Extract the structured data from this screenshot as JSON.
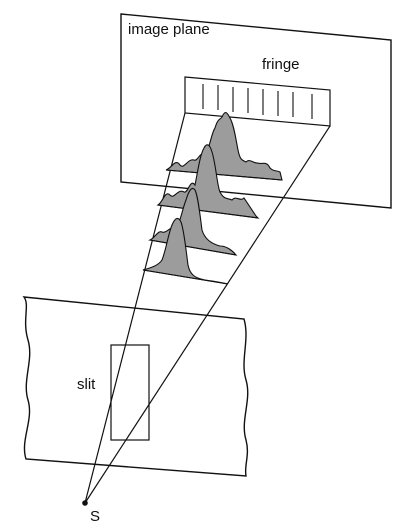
{
  "labels": {
    "image_plane": "image plane",
    "fringe": "fringe",
    "slit": "slit",
    "source": "S"
  },
  "colors": {
    "stroke": "#111111",
    "fill": "#9c9c9c",
    "background": "#ffffff"
  }
}
